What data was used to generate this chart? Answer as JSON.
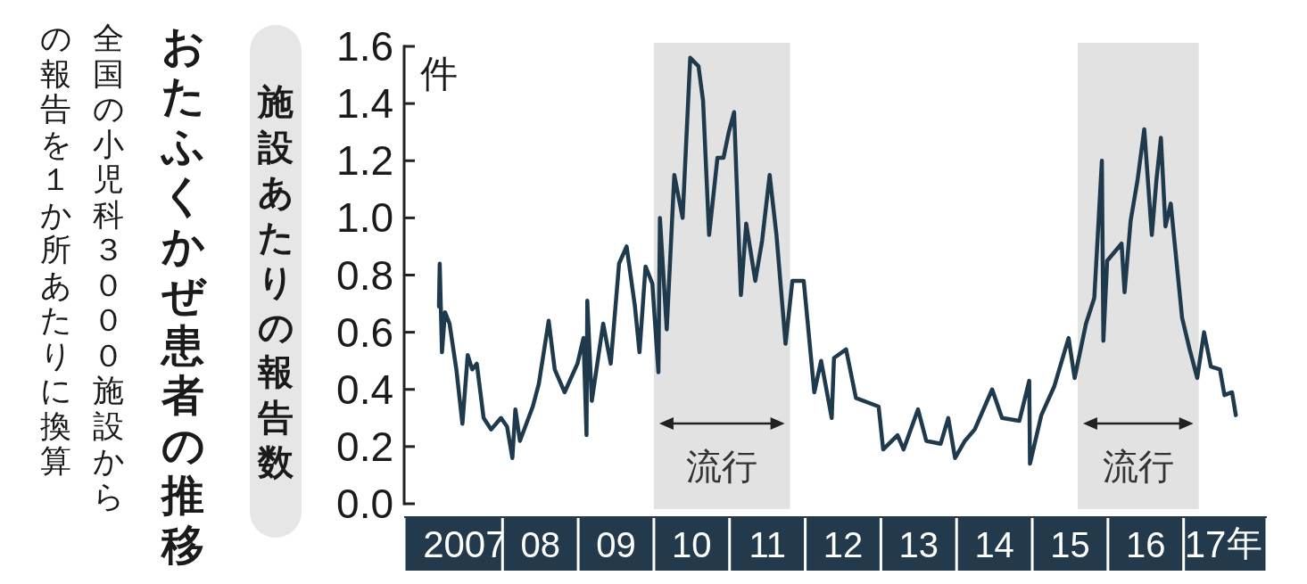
{
  "chart_data": {
    "type": "line",
    "title": "おたふくかぜ患者の推移",
    "subtitle": "全国の小児科３０００施設からの報告を１か所あたりに換算",
    "ylabel": "施設あたりの報告数",
    "annotations": [
      "件"
    ],
    "x": [
      2006.66,
      2006.67,
      2006.7,
      2006.74,
      2006.8,
      2006.89,
      2006.97,
      2007.04,
      2007.1,
      2007.16,
      2007.25,
      2007.35,
      2007.48,
      2007.56,
      2007.63,
      2007.67,
      2007.73,
      2007.9,
      2007.98,
      2008.11,
      2008.19,
      2008.32,
      2008.49,
      2008.57,
      2008.61,
      2008.62,
      2008.68,
      2008.83,
      2008.93,
      2009.04,
      2009.14,
      2009.25,
      2009.31,
      2009.39,
      2009.48,
      2009.56,
      2009.58,
      2009.67,
      2009.77,
      2009.88,
      2009.98,
      2010.09,
      2010.15,
      2010.23,
      2010.34,
      2010.42,
      2010.49,
      2010.56,
      2010.65,
      2010.72,
      2010.84,
      2010.93,
      2011.03,
      2011.12,
      2011.24,
      2011.33,
      2011.48,
      2011.62,
      2011.71,
      2011.85,
      2011.88,
      2012.04,
      2012.17,
      2012.47,
      2012.53,
      2012.72,
      2012.8,
      2012.99,
      2013.1,
      2013.29,
      2013.39,
      2013.48,
      2013.61,
      2013.74,
      2013.97,
      2014.1,
      2014.33,
      2014.46,
      2014.47,
      2014.62,
      2014.79,
      2014.98,
      2015.06,
      2015.21,
      2015.32,
      2015.42,
      2015.44,
      2015.49,
      2015.68,
      2015.72,
      2015.8,
      2015.89,
      2015.98,
      2016.08,
      2016.14,
      2016.2,
      2016.26,
      2016.33,
      2016.48,
      2016.58,
      2016.68,
      2016.77,
      2016.86,
      2016.98,
      2017.04,
      2017.14,
      2017.19
    ],
    "values": [
      0.69,
      0.84,
      0.53,
      0.67,
      0.63,
      0.47,
      0.28,
      0.52,
      0.47,
      0.49,
      0.3,
      0.26,
      0.3,
      0.27,
      0.16,
      0.33,
      0.22,
      0.34,
      0.42,
      0.64,
      0.47,
      0.39,
      0.49,
      0.58,
      0.24,
      0.71,
      0.36,
      0.63,
      0.49,
      0.84,
      0.9,
      0.69,
      0.53,
      0.83,
      0.77,
      0.46,
      1.0,
      0.61,
      1.15,
      1.0,
      1.56,
      1.53,
      1.41,
      0.94,
      1.21,
      1.21,
      1.3,
      1.37,
      0.73,
      0.98,
      0.78,
      0.92,
      1.15,
      0.94,
      0.56,
      0.78,
      0.78,
      0.39,
      0.5,
      0.3,
      0.51,
      0.54,
      0.37,
      0.34,
      0.19,
      0.24,
      0.19,
      0.33,
      0.22,
      0.21,
      0.3,
      0.16,
      0.22,
      0.26,
      0.4,
      0.3,
      0.29,
      0.43,
      0.14,
      0.31,
      0.41,
      0.58,
      0.44,
      0.63,
      0.72,
      1.2,
      0.57,
      0.85,
      0.91,
      0.74,
      0.99,
      1.13,
      1.31,
      0.94,
      1.13,
      1.28,
      0.97,
      1.05,
      0.65,
      0.54,
      0.44,
      0.6,
      0.48,
      0.47,
      0.38,
      0.39,
      0.31
    ],
    "color": "#1f3a4d",
    "xlim": [
      2006.2,
      2017.6
    ],
    "xticks": [
      2007,
      {
        "value": 2008,
        "label": "08"
      },
      {
        "value": 2009,
        "label": "09"
      },
      {
        "value": 2010,
        "label": "10"
      },
      {
        "value": 2011,
        "label": "11"
      },
      {
        "value": 2012,
        "label": "12"
      },
      {
        "value": 2013,
        "label": "13"
      },
      {
        "value": 2014,
        "label": "14"
      },
      {
        "value": 2015,
        "label": "15"
      },
      {
        "value": 2016,
        "label": "16"
      },
      {
        "value": 2017,
        "label": "17"
      }
    ],
    "xlabel": "年",
    "ylim": [
      0,
      1.6
    ],
    "yticks": [
      {
        "value": 0,
        "label": "0.0"
      },
      {
        "value": 0.2,
        "label": "0.2"
      },
      {
        "value": 0.4,
        "label": "0.4"
      },
      {
        "value": 0.6,
        "label": "0.6"
      },
      {
        "value": 0.8,
        "label": "0.8"
      },
      {
        "value": 1.0,
        "label": "1.0"
      },
      {
        "value": 1.2,
        "label": "1.2"
      },
      {
        "value": 1.4,
        "label": "1.4"
      },
      {
        "value": 1.6,
        "label": "1.6"
      }
    ],
    "bands": [
      {
        "axis": "x",
        "from": 2009.5,
        "to": 2011.3,
        "label": "流行",
        "color": "#e2e2e2"
      },
      {
        "axis": "x",
        "from": 2015.1,
        "to": 2016.7,
        "label": "流行",
        "color": "#e2e2e2"
      }
    ]
  }
}
